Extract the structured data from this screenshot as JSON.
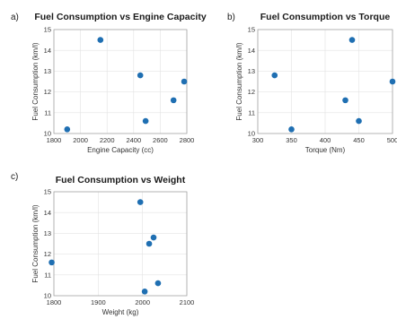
{
  "chart_data": [
    {
      "type": "scatter",
      "panel_label": "a)",
      "title": "Fuel Consumption vs Engine Capacity",
      "xlabel": "Engine Capacity (cc)",
      "ylabel": "Fuel Consumption (km/l)",
      "xlim": [
        1800,
        2800
      ],
      "ylim": [
        10,
        15
      ],
      "xticks": [
        1800,
        2000,
        2200,
        2400,
        2600,
        2800
      ],
      "yticks": [
        10,
        11,
        12,
        13,
        14,
        15
      ],
      "grid": true,
      "marker_color": "#1f6fb2",
      "points": [
        {
          "x": 1900,
          "y": 10.2
        },
        {
          "x": 2150,
          "y": 14.5
        },
        {
          "x": 2450,
          "y": 12.8
        },
        {
          "x": 2490,
          "y": 10.6
        },
        {
          "x": 2700,
          "y": 11.6
        },
        {
          "x": 2780,
          "y": 12.5
        }
      ]
    },
    {
      "type": "scatter",
      "panel_label": "b)",
      "title": "Fuel Consumption vs Torque",
      "xlabel": "Torque (Nm)",
      "ylabel": "Fuel Consumption (km/l)",
      "xlim": [
        300,
        500
      ],
      "ylim": [
        10,
        15
      ],
      "xticks": [
        300,
        350,
        400,
        450,
        500
      ],
      "yticks": [
        10,
        11,
        12,
        13,
        14,
        15
      ],
      "grid": true,
      "marker_color": "#1f6fb2",
      "points": [
        {
          "x": 325,
          "y": 12.8
        },
        {
          "x": 350,
          "y": 10.2
        },
        {
          "x": 430,
          "y": 11.6
        },
        {
          "x": 440,
          "y": 14.5
        },
        {
          "x": 450,
          "y": 10.6
        },
        {
          "x": 500,
          "y": 12.5
        }
      ]
    },
    {
      "type": "scatter",
      "panel_label": "c)",
      "title": "Fuel Consumption vs Weight",
      "xlabel": "Weight (kg)",
      "ylabel": "Fuel Consumption (km/l)",
      "xlim": [
        1800,
        2100
      ],
      "ylim": [
        10,
        15
      ],
      "xticks": [
        1800,
        1900,
        2000,
        2100
      ],
      "yticks": [
        10,
        11,
        12,
        13,
        14,
        15
      ],
      "grid": true,
      "marker_color": "#1f6fb2",
      "points": [
        {
          "x": 1795,
          "y": 11.6
        },
        {
          "x": 1995,
          "y": 14.5
        },
        {
          "x": 2005,
          "y": 10.2
        },
        {
          "x": 2015,
          "y": 12.5
        },
        {
          "x": 2025,
          "y": 12.8
        },
        {
          "x": 2035,
          "y": 10.6
        }
      ]
    }
  ]
}
